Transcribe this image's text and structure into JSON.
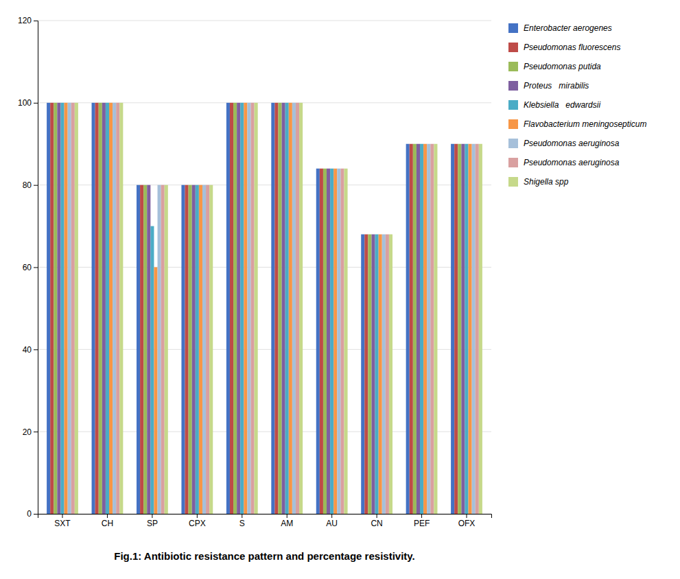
{
  "chart_data": {
    "type": "bar",
    "title": "Fig.1: Antibiotic resistance pattern and percentage resistivity.",
    "categories": [
      "SXT",
      "CH",
      "SP",
      "CPX",
      "S",
      "AM",
      "AU",
      "CN",
      "PEF",
      "OFX"
    ],
    "series": [
      {
        "name": "Enterobacter aerogenes",
        "color": "#4472C4",
        "values": [
          100,
          100,
          80,
          80,
          100,
          100,
          84,
          68,
          90,
          90
        ]
      },
      {
        "name": "Pseudomonas fluorescens",
        "color": "#BE4B48",
        "values": [
          100,
          100,
          80,
          80,
          100,
          100,
          84,
          68,
          90,
          90
        ]
      },
      {
        "name": "Pseudomonas putida",
        "color": "#9BBB59",
        "values": [
          100,
          100,
          80,
          80,
          100,
          100,
          84,
          68,
          90,
          90
        ]
      },
      {
        "name": "Proteus   mirabilis",
        "color": "#7E5FA0",
        "values": [
          100,
          100,
          80,
          80,
          100,
          100,
          84,
          68,
          90,
          90
        ]
      },
      {
        "name": "Klebsiella   edwardsii",
        "color": "#4BACC6",
        "values": [
          100,
          100,
          70,
          80,
          100,
          100,
          84,
          68,
          90,
          90
        ]
      },
      {
        "name": "Flavobacterium meningosepticum",
        "color": "#F79646",
        "values": [
          100,
          100,
          60,
          80,
          100,
          100,
          84,
          68,
          90,
          90
        ]
      },
      {
        "name": "Pseudomonas aeruginosa",
        "color": "#A6C0DA",
        "values": [
          100,
          100,
          80,
          80,
          100,
          100,
          84,
          68,
          90,
          90
        ]
      },
      {
        "name": "Pseudomonas aeruginosa",
        "color": "#D9A0A0",
        "values": [
          100,
          100,
          80,
          80,
          100,
          100,
          84,
          68,
          90,
          90
        ]
      },
      {
        "name": "Shigella spp",
        "color": "#C6D98A",
        "values": [
          100,
          100,
          80,
          80,
          100,
          100,
          84,
          68,
          90,
          90
        ]
      }
    ],
    "ylim": [
      0,
      120
    ],
    "yticks": [
      0,
      20,
      40,
      60,
      80,
      100,
      120
    ],
    "grid": true,
    "legend": "right"
  }
}
